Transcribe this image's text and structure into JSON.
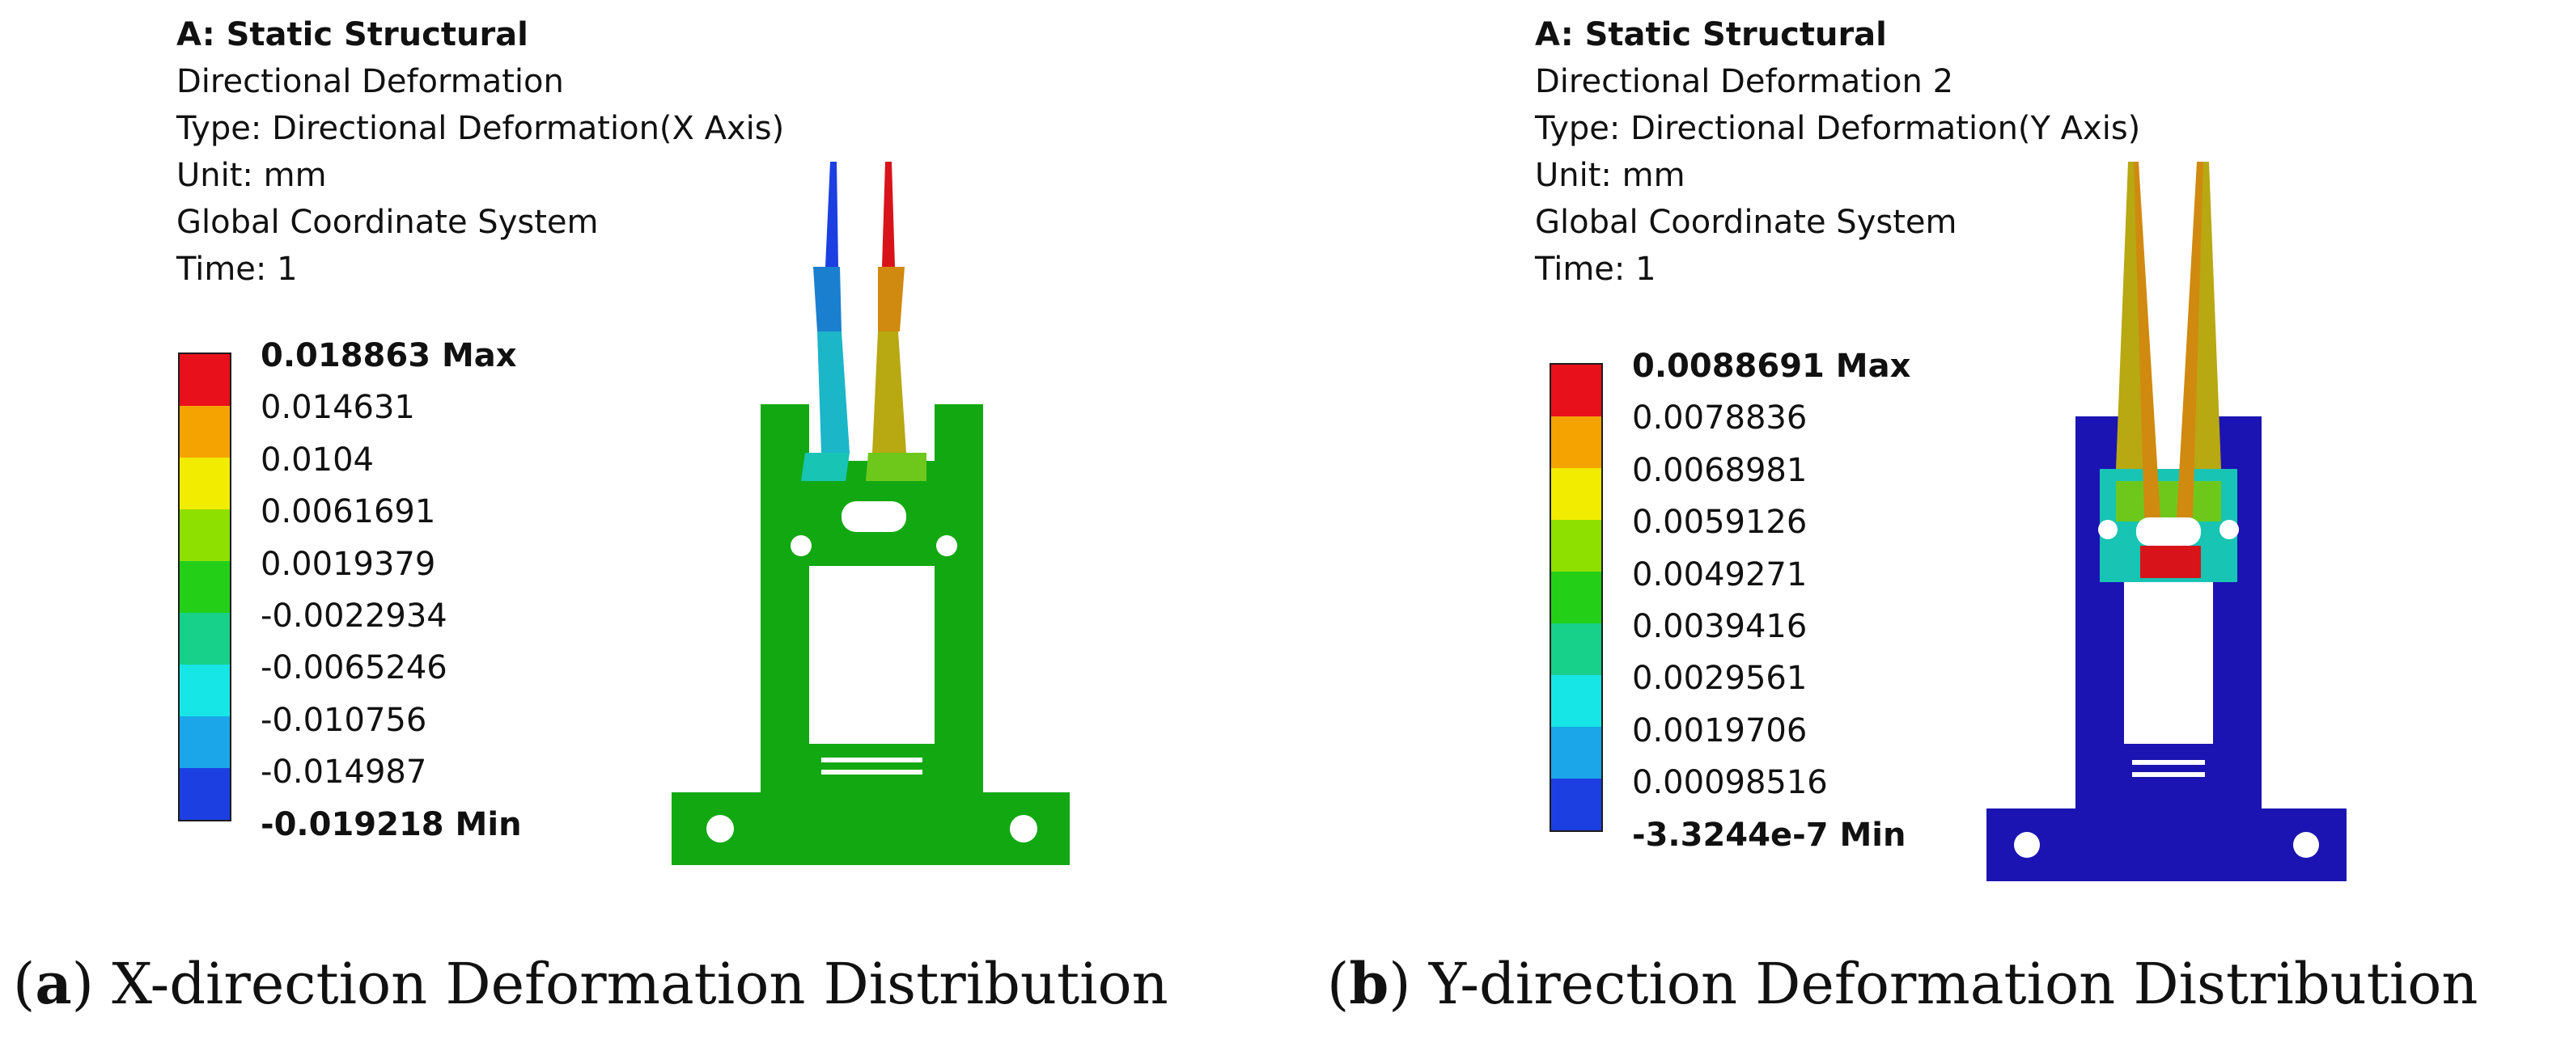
{
  "panels": [
    {
      "analysis": "A: Static Structural",
      "result_name": "Directional Deformation",
      "type_line": "Type: Directional Deformation(X Axis)",
      "unit_line": "Unit: mm",
      "coord_line": "Global Coordinate System",
      "time_line": "Time: 1",
      "legend": [
        "0.018863 Max",
        "0.014631",
        "0.0104",
        "0.0061691",
        "0.0019379",
        "-0.0022934",
        "-0.0065246",
        "-0.010756",
        "-0.014987",
        "-0.019218 Min"
      ],
      "caption_open": "(",
      "caption_letter": "a",
      "caption_text": ") X-direction Deformation Distribution"
    },
    {
      "analysis": "A: Static Structural",
      "result_name": "Directional Deformation 2",
      "type_line": "Type: Directional Deformation(Y Axis)",
      "unit_line": "Unit: mm",
      "coord_line": "Global Coordinate System",
      "time_line": "Time: 1",
      "legend": [
        "0.0088691 Max",
        "0.0078836",
        "0.0068981",
        "0.0059126",
        "0.0049271",
        "0.0039416",
        "0.0029561",
        "0.0019706",
        "0.00098516",
        "-3.3244e-7 Min"
      ],
      "caption_open": "(",
      "caption_letter": "b",
      "caption_text": ") Y-direction Deformation Distribution"
    }
  ],
  "colors": {
    "scale": [
      "#e8101a",
      "#f5a300",
      "#f2ec00",
      "#8de000",
      "#23d017",
      "#17d08a",
      "#17e6e6",
      "#1aa6e8",
      "#1c3fe2"
    ],
    "structure_green": "#12a812",
    "structure_blue": "#1b14b2",
    "cyan_teal": "#18c4b4",
    "orange_brown": "#d08a10",
    "olive": "#b8a812",
    "red": "#d8141a"
  }
}
